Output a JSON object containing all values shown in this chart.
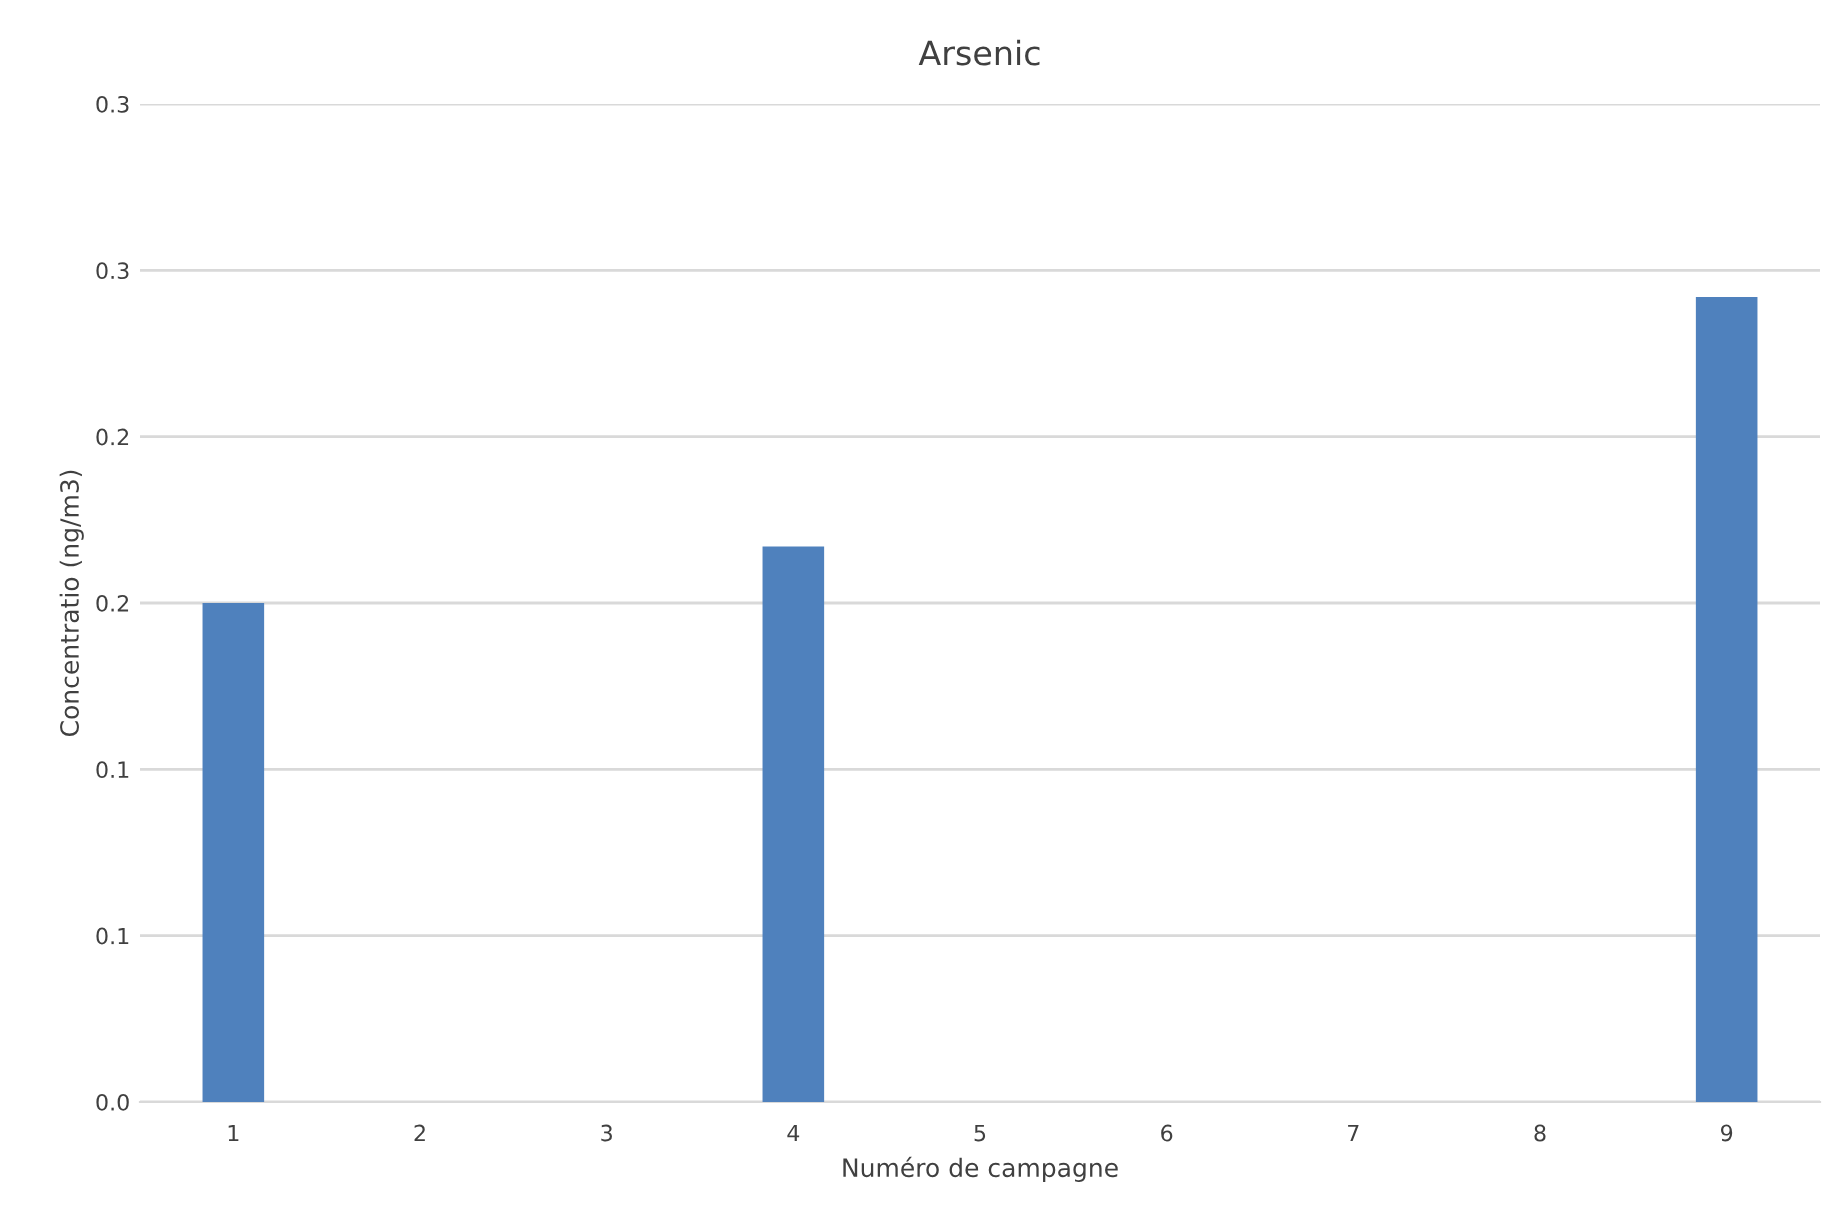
{
  "chart_data": {
    "type": "bar",
    "title": "Arsenic",
    "xlabel": "Numéro de campagne",
    "ylabel": "Concentratio (ng/m3)",
    "categories": [
      "1",
      "2",
      "3",
      "4",
      "5",
      "6",
      "7",
      "8",
      "9"
    ],
    "values": [
      0.15,
      null,
      null,
      0.167,
      null,
      null,
      null,
      null,
      0.242
    ],
    "color": "#4f81bd",
    "ylim": [
      0,
      0.3
    ],
    "yticks": [
      {
        "value": 0,
        "label": "0.0"
      },
      {
        "value": 0.05,
        "label": "0.1"
      },
      {
        "value": 0.1,
        "label": "0.1"
      },
      {
        "value": 0.15,
        "label": "0.2"
      },
      {
        "value": 0.2,
        "label": "0.2"
      },
      {
        "value": 0.25,
        "label": "0.3"
      },
      {
        "value": 0.3,
        "label": "0.3"
      }
    ],
    "grid": "y",
    "legend": false
  }
}
